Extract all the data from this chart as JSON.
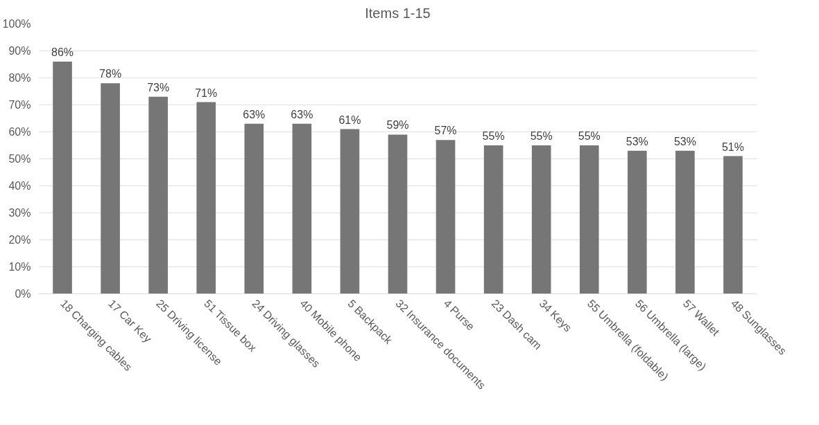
{
  "chart_data": {
    "type": "bar",
    "title": "Items 1-15",
    "categories": [
      "18 Charging cables",
      "17 Car Key",
      "25 Driving license",
      "51 Tissue box",
      "24 Driving glasses",
      "40 Mobile phone",
      "5 Backpack",
      "32 Insurance documents",
      "4 Purse",
      "23 Dash cam",
      "34 Keys",
      "55 Umbrella (foldable)",
      "56 Umbrella (large)",
      "57 Wallet",
      "48 Sunglasses"
    ],
    "values": [
      86,
      78,
      73,
      71,
      63,
      63,
      61,
      59,
      57,
      55,
      55,
      55,
      53,
      53,
      51
    ],
    "value_labels": [
      "86%",
      "78%",
      "73%",
      "71%",
      "63%",
      "63%",
      "61%",
      "59%",
      "57%",
      "55%",
      "55%",
      "55%",
      "53%",
      "53%",
      "51%"
    ],
    "color": "#767676",
    "ylim": [
      0,
      100
    ],
    "yticks": [
      {
        "value": 0,
        "label": "0%"
      },
      {
        "value": 10,
        "label": "10%"
      },
      {
        "value": 20,
        "label": "20%"
      },
      {
        "value": 30,
        "label": "30%"
      },
      {
        "value": 40,
        "label": "40%"
      },
      {
        "value": 50,
        "label": "50%"
      },
      {
        "value": 60,
        "label": "60%"
      },
      {
        "value": 70,
        "label": "70%"
      },
      {
        "value": 80,
        "label": "80%"
      },
      {
        "value": 90,
        "label": "90%"
      },
      {
        "value": 100,
        "label": "100%"
      }
    ],
    "grid": "y"
  }
}
